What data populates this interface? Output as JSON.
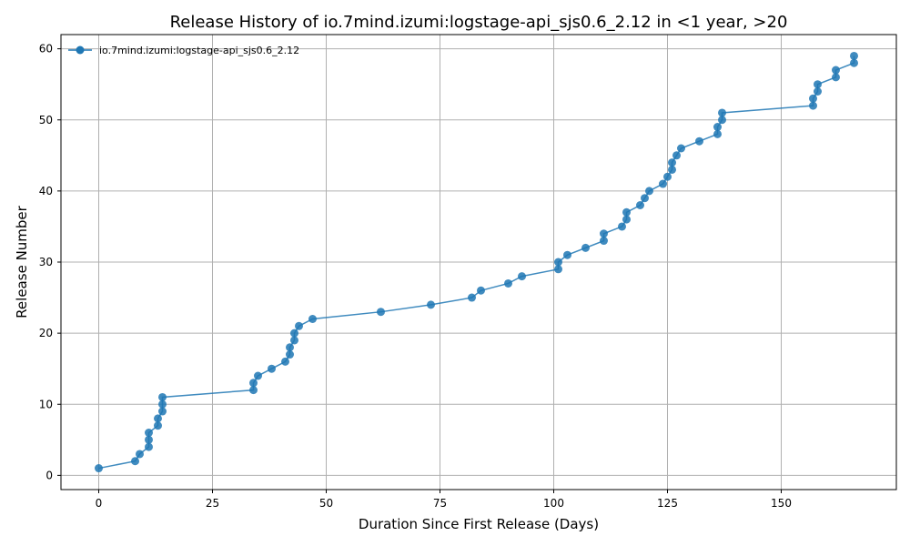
{
  "chart_data": {
    "type": "line",
    "title": "Release History of io.7mind.izumi:logstage-api_sjs0.6_2.12 in <1 year, >20",
    "xlabel": "Duration Since First Release (Days)",
    "ylabel": "Release Number",
    "xlim": [
      -8.3,
      175.3
    ],
    "ylim": [
      -2,
      62
    ],
    "xticks": [
      0,
      25,
      50,
      75,
      100,
      125,
      150
    ],
    "yticks": [
      0,
      10,
      20,
      30,
      40,
      50,
      60
    ],
    "grid": true,
    "legend_position": "top-left",
    "series": [
      {
        "name": "io.7mind.izumi:logstage-api_sjs0.6_2.12",
        "color": "#1f77b4",
        "x": [
          0,
          8,
          9,
          11,
          11,
          11,
          13,
          13,
          14,
          14,
          14,
          34,
          34,
          35,
          38,
          41,
          42,
          42,
          43,
          43,
          44,
          47,
          62,
          73,
          82,
          84,
          90,
          93,
          101,
          101,
          103,
          107,
          111,
          111,
          115,
          116,
          116,
          119,
          120,
          121,
          124,
          125,
          126,
          126,
          127,
          128,
          132,
          136,
          136,
          137,
          137,
          157,
          157,
          158,
          158,
          162,
          162,
          166,
          166
        ],
        "y": [
          1,
          2,
          3,
          4,
          5,
          6,
          7,
          8,
          9,
          10,
          11,
          12,
          13,
          14,
          15,
          16,
          17,
          18,
          19,
          20,
          21,
          22,
          23,
          24,
          25,
          26,
          27,
          28,
          29,
          30,
          31,
          32,
          33,
          34,
          35,
          36,
          37,
          38,
          39,
          40,
          41,
          42,
          43,
          44,
          45,
          46,
          47,
          48,
          49,
          50,
          51,
          52,
          53,
          54,
          55,
          56,
          57,
          58,
          59
        ]
      }
    ]
  }
}
